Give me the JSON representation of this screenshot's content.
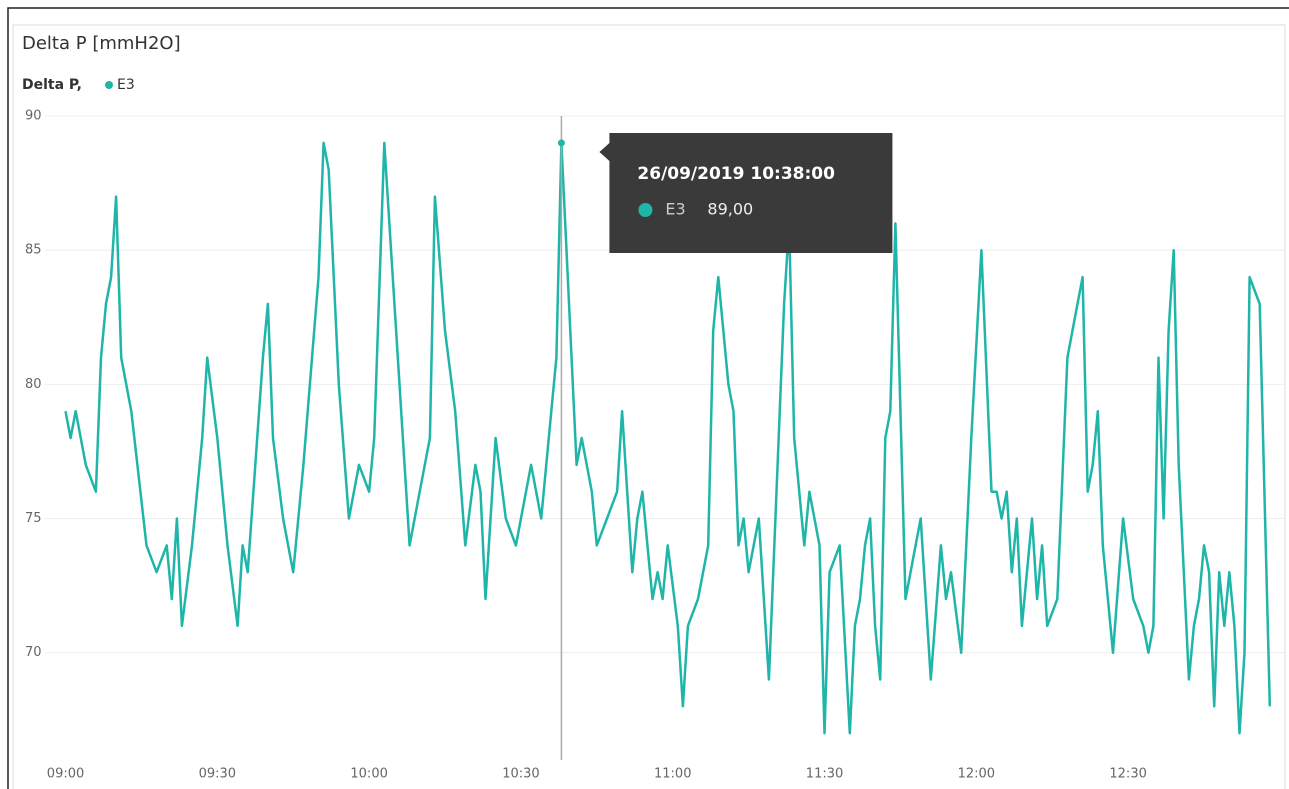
{
  "chart_data": {
    "type": "line",
    "title": "Delta P [mmH2O]",
    "legend_title": "Delta P,",
    "x": [
      "09:00",
      "09:01",
      "09:02",
      "09:04",
      "09:06",
      "09:07",
      "09:08",
      "09:09",
      "09:10",
      "09:11",
      "09:13",
      "09:16",
      "09:18",
      "09:20",
      "09:21",
      "09:22",
      "09:23",
      "09:25",
      "09:27",
      "09:28",
      "09:30",
      "09:32",
      "09:34",
      "09:35",
      "09:36",
      "09:39",
      "09:40",
      "09:41",
      "09:43",
      "09:45",
      "09:47",
      "09:50",
      "09:51",
      "09:52",
      "09:54",
      "09:56",
      "09:58",
      "10:00",
      "10:01",
      "10:03",
      "10:06",
      "10:08",
      "10:10",
      "10:12",
      "10:13",
      "10:15",
      "10:17",
      "10:19",
      "10:21",
      "10:22",
      "10:23",
      "10:25",
      "10:27",
      "10:29",
      "10:31",
      "10:32",
      "10:34",
      "10:36",
      "10:37",
      "10:38",
      "10:39",
      "10:41",
      "10:42",
      "10:44",
      "10:45",
      "10:47",
      "10:49",
      "10:50",
      "10:52",
      "10:53",
      "10:54",
      "10:56",
      "10:57",
      "10:58",
      "10:59",
      "11:01",
      "11:02",
      "11:03",
      "11:05",
      "11:07",
      "11:08",
      "11:09",
      "11:11",
      "11:12",
      "11:13",
      "11:14",
      "11:15",
      "11:17",
      "11:19",
      "11:22",
      "11:23",
      "11:24",
      "11:26",
      "11:27",
      "11:29",
      "11:30",
      "11:31",
      "11:33",
      "11:35",
      "11:36",
      "11:37",
      "11:38",
      "11:39",
      "11:40",
      "11:41",
      "11:42",
      "11:43",
      "11:44",
      "11:46",
      "11:48",
      "11:49",
      "11:51",
      "11:53",
      "11:54",
      "11:55",
      "11:57",
      "11:59",
      "12:01",
      "12:03",
      "12:04",
      "12:05",
      "12:06",
      "12:07",
      "12:08",
      "12:09",
      "12:11",
      "12:12",
      "12:13",
      "12:14",
      "12:16",
      "12:18",
      "12:20",
      "12:21",
      "12:22",
      "12:23",
      "12:24",
      "12:25",
      "12:27",
      "12:29",
      "12:31",
      "12:33",
      "12:34",
      "12:35",
      "12:36",
      "12:37",
      "12:38",
      "12:39",
      "12:40",
      "12:42",
      "12:43",
      "12:44",
      "12:45",
      "12:46",
      "12:47",
      "12:48",
      "12:49",
      "12:50",
      "12:51",
      "12:52",
      "12:53",
      "12:54",
      "12:56",
      "12:58"
    ],
    "series": [
      {
        "name": "E3",
        "color": "#1fb5a8",
        "values": [
          79,
          78,
          79,
          77,
          76,
          81,
          83,
          84,
          87,
          81,
          79,
          74,
          73,
          74,
          72,
          75,
          71,
          74,
          78,
          81,
          78,
          74,
          71,
          74,
          73,
          81,
          83,
          78,
          75,
          73,
          77,
          84,
          89,
          88,
          80,
          75,
          77,
          76,
          78,
          89,
          80,
          74,
          76,
          78,
          87,
          82,
          79,
          74,
          77,
          76,
          72,
          78,
          75,
          74,
          76,
          77,
          75,
          79,
          81,
          89,
          85,
          77,
          78,
          76,
          74,
          75,
          76,
          79,
          73,
          75,
          76,
          72,
          73,
          72,
          74,
          71,
          68,
          71,
          72,
          74,
          82,
          84,
          80,
          79,
          74,
          75,
          73,
          75,
          69,
          83,
          86,
          78,
          74,
          76,
          74,
          67,
          73,
          74,
          67,
          71,
          72,
          74,
          75,
          71,
          69,
          78,
          79,
          86,
          72,
          74,
          75,
          69,
          74,
          72,
          73,
          70,
          78,
          85,
          76,
          76,
          75,
          76,
          73,
          75,
          71,
          75,
          72,
          74,
          71,
          72,
          81,
          83,
          84,
          76,
          77,
          79,
          74,
          70,
          75,
          72,
          71,
          70,
          71,
          81,
          75,
          82,
          85,
          77,
          69,
          71,
          72,
          74,
          73,
          68,
          73,
          71,
          73,
          71,
          67,
          70,
          84,
          83,
          68
        ]
      }
    ],
    "xlim": [
      "08:51",
      "13:01"
    ],
    "xticks": [
      "09:00",
      "09:30",
      "10:00",
      "10:30",
      "11:00",
      "11:30",
      "12:00",
      "12:30"
    ],
    "ylim": [
      66,
      90.6
    ],
    "yticks": [
      70,
      75,
      80,
      85,
      90
    ],
    "grid": true,
    "tooltip": {
      "title": "26/09/2019 10:38:00",
      "series": "E3",
      "value": 89,
      "value_label": "89,00"
    }
  }
}
